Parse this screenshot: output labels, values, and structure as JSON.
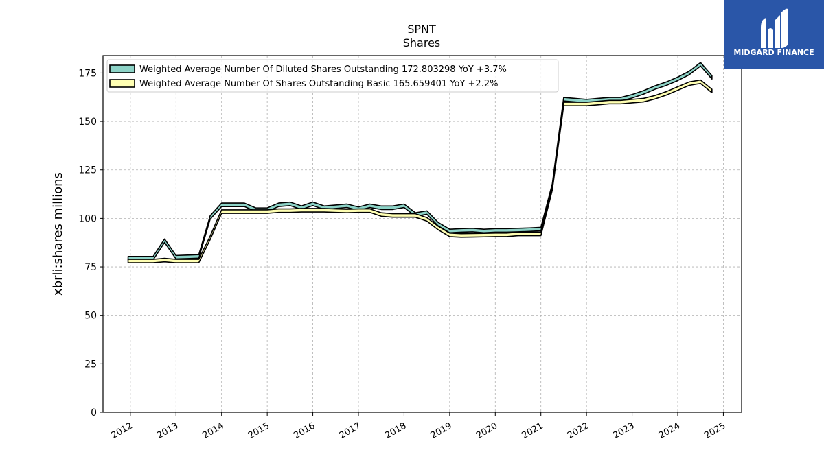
{
  "chart_data": {
    "type": "area",
    "title": "SPNT",
    "subtitle": "Shares",
    "xlabel": "",
    "ylabel": "xbrli:shares millions",
    "xlim": [
      2011.4,
      2025.4
    ],
    "ylim": [
      0,
      184
    ],
    "yticks": [
      0,
      25,
      50,
      75,
      100,
      125,
      150,
      175
    ],
    "xticks": [
      2012,
      2013,
      2014,
      2015,
      2016,
      2017,
      2018,
      2019,
      2020,
      2021,
      2022,
      2023,
      2024,
      2025
    ],
    "xtick_labels": [
      "2012",
      "2013",
      "2014",
      "2015",
      "2016",
      "2017",
      "2018",
      "2019",
      "2020",
      "2021",
      "2022",
      "2023",
      "2024",
      "2025"
    ],
    "grid": true,
    "legend_position": "top-left",
    "series": [
      {
        "name": "Weighted Average Number Of Diluted Shares Outstanding  172.803298 YoY +3.7%",
        "color": "#8dd3c7",
        "x": [
          2011.95,
          2012.25,
          2012.5,
          2012.75,
          2013.0,
          2013.25,
          2013.5,
          2013.75,
          2014.0,
          2014.25,
          2014.5,
          2014.75,
          2015.0,
          2015.25,
          2015.5,
          2015.75,
          2016.0,
          2016.25,
          2016.5,
          2016.75,
          2017.0,
          2017.25,
          2017.5,
          2017.75,
          2018.0,
          2018.25,
          2018.5,
          2018.75,
          2019.0,
          2019.25,
          2019.5,
          2019.75,
          2020.0,
          2020.25,
          2020.5,
          2020.75,
          2021.0,
          2021.25,
          2021.5,
          2021.75,
          2022.0,
          2022.25,
          2022.5,
          2022.75,
          2023.0,
          2023.25,
          2023.5,
          2023.75,
          2024.0,
          2024.25,
          2024.5,
          2024.75
        ],
        "values": [
          79.5,
          79.5,
          79.5,
          88.5,
          80,
          80.2,
          80.4,
          100.5,
          107,
          107,
          107,
          104.5,
          104.5,
          107,
          107.5,
          105.5,
          107.5,
          105.5,
          106,
          106.5,
          105,
          106.5,
          105.5,
          105.5,
          106.5,
          102,
          103,
          97,
          93.5,
          93.8,
          94,
          93.5,
          93.8,
          93.8,
          94,
          94.2,
          94.5,
          117,
          161.5,
          161,
          160.5,
          161,
          161.5,
          161.5,
          163,
          165,
          167.5,
          169.5,
          172,
          175,
          179.5,
          172.8
        ]
      },
      {
        "name": "Weighted Average Number Of Shares Outstanding Basic  165.659401 YoY +2.2%",
        "color": "#ffffb3",
        "x": [
          2011.95,
          2012.25,
          2012.5,
          2012.75,
          2013.0,
          2013.25,
          2013.5,
          2013.75,
          2014.0,
          2014.25,
          2014.5,
          2014.75,
          2015.0,
          2015.25,
          2015.5,
          2015.75,
          2016.0,
          2016.25,
          2016.5,
          2016.75,
          2017.0,
          2017.25,
          2017.5,
          2017.75,
          2018.0,
          2018.25,
          2018.5,
          2018.75,
          2019.0,
          2019.25,
          2019.5,
          2019.75,
          2020.0,
          2020.25,
          2020.5,
          2020.75,
          2021.0,
          2021.25,
          2021.5,
          2021.75,
          2022.0,
          2022.25,
          2022.5,
          2022.75,
          2023.0,
          2023.25,
          2023.5,
          2023.75,
          2024.0,
          2024.25,
          2024.5,
          2024.75
        ],
        "values": [
          78,
          78,
          78,
          78.5,
          78,
          78,
          78,
          90,
          103.5,
          103.5,
          103.5,
          103.5,
          103.5,
          104,
          104,
          104.2,
          104.2,
          104.2,
          104,
          103.8,
          104,
          104,
          102,
          101.5,
          101.5,
          101.5,
          99.5,
          95,
          91.5,
          91.2,
          91.3,
          91.4,
          91.5,
          91.5,
          92,
          92,
          92,
          115.5,
          159,
          159,
          159,
          159.5,
          160,
          160,
          160.5,
          161,
          162.5,
          164.5,
          167,
          169.5,
          170.5,
          165.7
        ]
      }
    ]
  },
  "logo": {
    "text": "MIDGARD FINANCE",
    "bg_color": "#2a56a8"
  }
}
